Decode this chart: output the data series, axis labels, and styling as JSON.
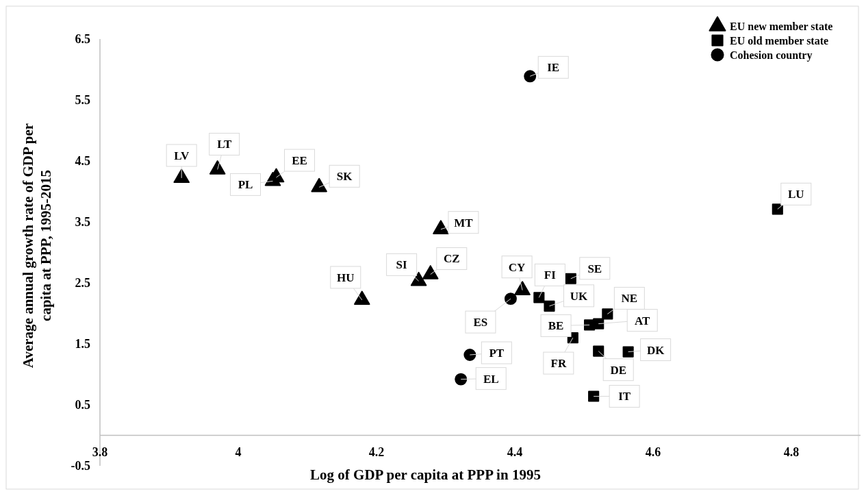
{
  "chart_data": {
    "type": "scatter",
    "xlabel": "Log of GDP per capita at PPP in 1995",
    "ylabel": "Average annual growth rate of GDP per capita at PPP, 1995-2015",
    "xlim": [
      3.8,
      4.9
    ],
    "xticks": [
      3.8,
      4,
      4.2,
      4.4,
      4.6,
      4.8
    ],
    "ylim": [
      -0.5,
      6.5
    ],
    "yticks": [
      -0.5,
      0.5,
      1.5,
      2.5,
      3.5,
      4.5,
      5.5,
      6.5
    ],
    "grid": false,
    "legend": "top right",
    "series": [
      {
        "name": "EU new member state",
        "color": "#000000",
        "marker": "triangle",
        "x": [
          3.918,
          3.97,
          4.05,
          4.055,
          4.117,
          4.293,
          4.179,
          4.261,
          4.278,
          4.411
        ],
        "values": [
          4.22,
          4.36,
          4.17,
          4.23,
          4.07,
          3.38,
          2.22,
          2.53,
          2.64,
          2.38
        ]
      },
      {
        "name": "EU old member state",
        "color": "#000000",
        "marker": "square",
        "x": [
          4.435,
          4.45,
          4.481,
          4.534,
          4.508,
          4.521,
          4.484,
          4.521,
          4.564,
          4.514,
          4.78
        ],
        "values": [
          2.26,
          2.12,
          2.57,
          1.99,
          1.81,
          1.83,
          1.6,
          1.38,
          1.37,
          0.64,
          3.71
        ]
      },
      {
        "name": "Cohesion country",
        "color": "#000000",
        "marker": "circle",
        "x": [
          4.422,
          4.394,
          4.335,
          4.322
        ],
        "values": [
          5.89,
          2.24,
          1.32,
          0.92
        ]
      }
    ],
    "annotations": [
      {
        "text": "LV",
        "x": 3.918,
        "y": 4.22
      },
      {
        "text": "LT",
        "x": 3.97,
        "y": 4.36
      },
      {
        "text": "PL",
        "x": 4.05,
        "y": 4.17
      },
      {
        "text": "EE",
        "x": 4.055,
        "y": 4.23
      },
      {
        "text": "SK",
        "x": 4.117,
        "y": 4.07
      },
      {
        "text": "MT",
        "x": 4.293,
        "y": 3.38
      },
      {
        "text": "HU",
        "x": 4.179,
        "y": 2.22
      },
      {
        "text": "SI",
        "x": 4.261,
        "y": 2.53
      },
      {
        "text": "CZ",
        "x": 4.278,
        "y": 2.64
      },
      {
        "text": "CY",
        "x": 4.411,
        "y": 2.38
      },
      {
        "text": "IE",
        "x": 4.422,
        "y": 5.89
      },
      {
        "text": "ES",
        "x": 4.394,
        "y": 2.24
      },
      {
        "text": "FI",
        "x": 4.435,
        "y": 2.26
      },
      {
        "text": "UK",
        "x": 4.45,
        "y": 2.12
      },
      {
        "text": "SE",
        "x": 4.481,
        "y": 2.57
      },
      {
        "text": "NE",
        "x": 4.534,
        "y": 1.99
      },
      {
        "text": "BE",
        "x": 4.508,
        "y": 1.81
      },
      {
        "text": "AT",
        "x": 4.521,
        "y": 1.83
      },
      {
        "text": "FR",
        "x": 4.484,
        "y": 1.6
      },
      {
        "text": "DE",
        "x": 4.521,
        "y": 1.38
      },
      {
        "text": "DK",
        "x": 4.564,
        "y": 1.37
      },
      {
        "text": "IT",
        "x": 4.514,
        "y": 0.64
      },
      {
        "text": "PT",
        "x": 4.335,
        "y": 1.32
      },
      {
        "text": "EL",
        "x": 4.322,
        "y": 0.92
      },
      {
        "text": "LU",
        "x": 4.78,
        "y": 3.71
      }
    ]
  }
}
